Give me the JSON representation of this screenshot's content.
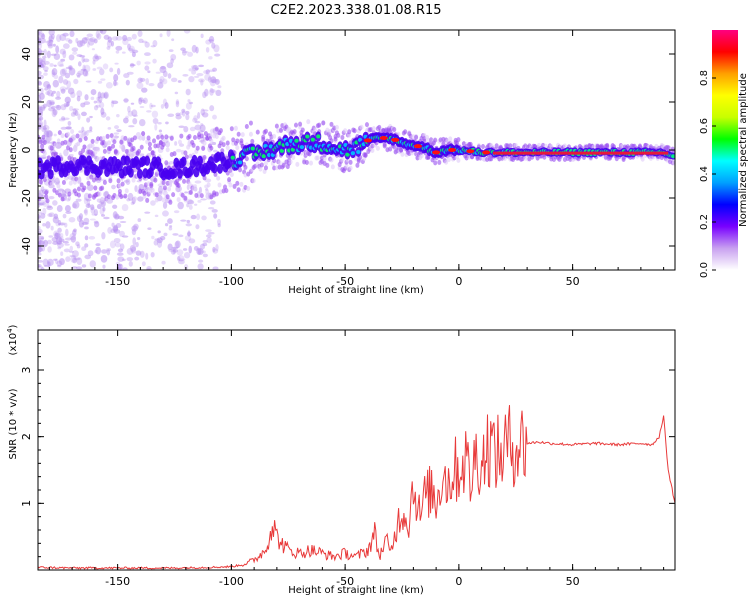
{
  "title": "C2E2.2023.338.01.08.R15",
  "colors": {
    "snr_line": "#e83a3a",
    "trace_core": "#e8183a",
    "axis": "#000000",
    "background": "#ffffff"
  },
  "chart_data": [
    {
      "type": "heatmap",
      "xlabel": "Height of straight line (km)",
      "ylabel": "Frequency (Hz)",
      "xlim": [
        -185,
        95
      ],
      "ylim": [
        -50,
        50
      ],
      "xticks": [
        -150,
        -100,
        -50,
        0,
        50
      ],
      "yticks": [
        -40,
        -20,
        0,
        20,
        40
      ],
      "grid": false,
      "colorbar": {
        "label": "Normalized spectral amplitude",
        "range": [
          0,
          1
        ],
        "ticks": [
          "0.0",
          "0.2",
          "0.4",
          "0.6",
          "0.8"
        ],
        "colormap": [
          "#ffffff",
          "#c8a0f0",
          "#7800ff",
          "#0000ff",
          "#00a0ff",
          "#00ffff",
          "#00ff00",
          "#c8ff00",
          "#ffff00",
          "#ffa000",
          "#ff0000",
          "#ff0080"
        ]
      },
      "ridge": {
        "description_free_trace_points": [
          {
            "x": -185,
            "y": -8
          },
          {
            "x": -170,
            "y": -6
          },
          {
            "x": -155,
            "y": -7
          },
          {
            "x": -140,
            "y": -7
          },
          {
            "x": -125,
            "y": -8
          },
          {
            "x": -110,
            "y": -6
          },
          {
            "x": -100,
            "y": -4
          },
          {
            "x": -90,
            "y": -2
          },
          {
            "x": -80,
            "y": 1
          },
          {
            "x": -70,
            "y": 3
          },
          {
            "x": -60,
            "y": 3
          },
          {
            "x": -50,
            "y": 0
          },
          {
            "x": -45,
            "y": 1
          },
          {
            "x": -40,
            "y": 4
          },
          {
            "x": -35,
            "y": 5
          },
          {
            "x": -30,
            "y": 5
          },
          {
            "x": -25,
            "y": 3
          },
          {
            "x": -20,
            "y": 2
          },
          {
            "x": -15,
            "y": 1
          },
          {
            "x": -10,
            "y": -1
          },
          {
            "x": -5,
            "y": 0
          },
          {
            "x": 0,
            "y": 0
          },
          {
            "x": 10,
            "y": -1
          },
          {
            "x": 20,
            "y": -1
          },
          {
            "x": 30,
            "y": -1
          },
          {
            "x": 50,
            "y": -1
          },
          {
            "x": 70,
            "y": -1
          },
          {
            "x": 90,
            "y": -1
          },
          {
            "x": 95,
            "y": -3
          }
        ]
      }
    },
    {
      "type": "line",
      "xlabel": "Height of straight line (km)",
      "ylabel": "SNR (10 * v/v)",
      "scale_label": "(x10",
      "scale_exp": "4",
      "scale_close": ")",
      "xlim": [
        -185,
        95
      ],
      "ylim": [
        0,
        3.6
      ],
      "xticks": [
        -150,
        -100,
        -50,
        0,
        50
      ],
      "yticks": [
        1,
        2,
        3
      ],
      "grid": false,
      "series": [
        {
          "x": [
            -185,
            -170,
            -155,
            -140,
            -125,
            -110,
            -100,
            -95,
            -90,
            -85,
            -82,
            -80,
            -78,
            -75,
            -70,
            -65,
            -60,
            -55,
            -50,
            -45,
            -40,
            -37,
            -35,
            -32,
            -30,
            -27,
            -25,
            -22,
            -20,
            -17,
            -15,
            -12,
            -10,
            -7,
            -5,
            -2,
            0,
            3,
            5,
            8,
            10,
            13,
            15,
            18,
            20,
            25,
            30,
            35,
            40,
            50,
            60,
            70,
            80,
            85,
            88,
            90,
            92,
            95
          ],
          "y": [
            0.04,
            0.03,
            0.03,
            0.03,
            0.03,
            0.04,
            0.05,
            0.08,
            0.15,
            0.3,
            0.7,
            0.5,
            0.4,
            0.3,
            0.25,
            0.3,
            0.25,
            0.2,
            0.25,
            0.2,
            0.3,
            0.55,
            0.2,
            0.45,
            0.25,
            0.7,
            0.9,
            0.7,
            1.3,
            0.8,
            1.1,
            1.2,
            1.0,
            1.5,
            1.3,
            1.5,
            1.5,
            1.7,
            1.3,
            1.8,
            1.6,
            1.9,
            1.8,
            1.7,
            1.85,
            1.9,
            1.9,
            1.92,
            1.9,
            1.88,
            1.9,
            1.88,
            1.9,
            1.88,
            2.0,
            2.3,
            1.5,
            1.0
          ]
        }
      ]
    }
  ]
}
